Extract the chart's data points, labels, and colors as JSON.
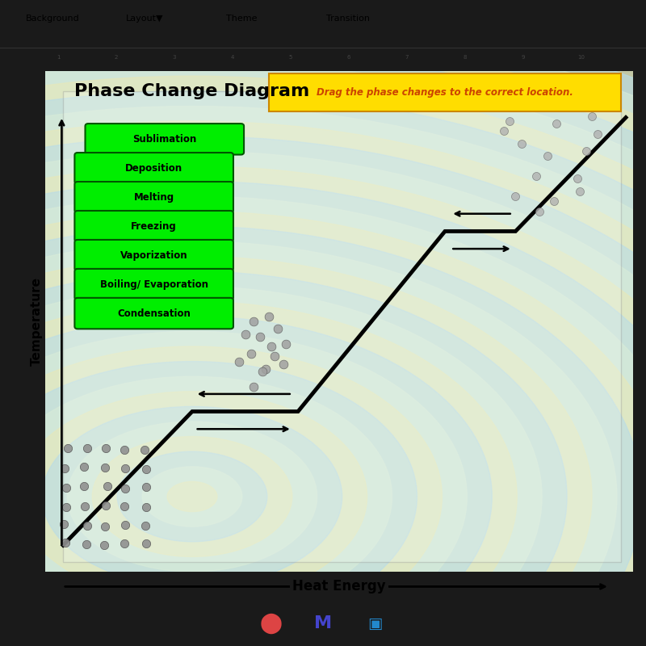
{
  "title": "Phase Change Diagram",
  "subtitle": "Drag the phase changes to the correct location.",
  "xlabel": "Heat Energy",
  "ylabel": "Temperature",
  "title_color": "#000000",
  "subtitle_bg": "#ffdd00",
  "subtitle_color": "#cc4400",
  "green_labels": [
    "Sublimation",
    "Deposition",
    "Melting",
    "Freezing",
    "Vaporization",
    "Boiling/ Evaporation",
    "Condensation"
  ],
  "green_color": "#00ee00",
  "green_text_color": "#000000",
  "phase_line_color": "#000000",
  "outer_bg": "#1a1a1a",
  "toolbar_bg": "#c8c8c8",
  "ruler_bg": "#d0d0d0",
  "chart_outer_bg": "#b0b8b0",
  "chart_inner_bg": "#ddeedd"
}
